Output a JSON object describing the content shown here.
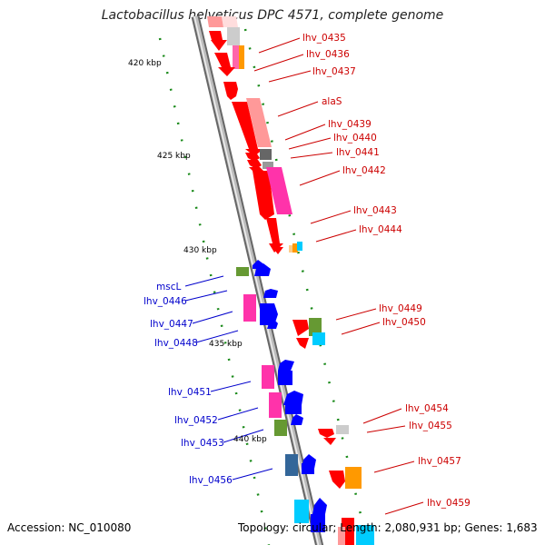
{
  "title": "Lactobacillus helveticus DPC 4571, complete genome",
  "footer": {
    "accession": "Accession: NC_010080",
    "info": "Topology: circular; Length: 2,080,931 bp; Genes: 1,683"
  },
  "ticks": [
    "420 kbp",
    "425 kbp",
    "430 kbp",
    "435 kbp",
    "440 kbp"
  ],
  "genes_forward": [
    "lhv_0435",
    "lhv_0436",
    "lhv_0437",
    "alaS",
    "lhv_0439",
    "lhv_0440",
    "lhv_0441",
    "lhv_0442",
    "lhv_0443",
    "lhv_0444",
    "lhv_0449",
    "lhv_0450",
    "lhv_0454",
    "lhv_0455",
    "lhv_0457",
    "lhv_0459"
  ],
  "genes_reverse": [
    "mscL",
    "lhv_0446",
    "lhv_0447",
    "lhv_0448",
    "lhv_0451",
    "lhv_0452",
    "lhv_0453",
    "lhv_0456"
  ],
  "colors": {
    "forward": "#cc0000",
    "reverse": "#0000cc",
    "backbone": "#888888",
    "tick_dots": "#1a8a1a"
  }
}
